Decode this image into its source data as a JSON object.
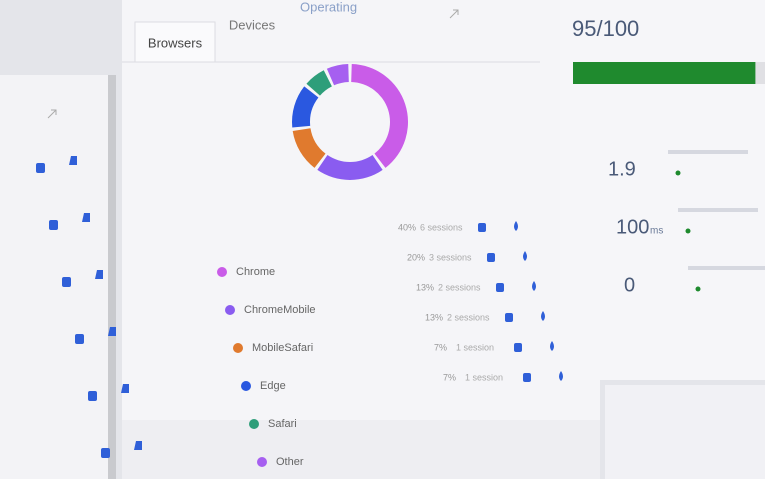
{
  "tabs": [
    "Browsers",
    "Devices",
    "Operating"
  ],
  "browsers": {
    "items": [
      {
        "name": "Chrome",
        "color": "#c95ce8",
        "value": 40,
        "value_label": "40%",
        "sessions": "6 sessions"
      },
      {
        "name": "ChromeMobile",
        "color": "#8a5cf0",
        "value": 20,
        "value_label": "20%",
        "sessions": "3 sessions"
      },
      {
        "name": "MobileSafari",
        "color": "#e07a2e",
        "value": 13,
        "value_label": "13%",
        "sessions": "2 sessions"
      },
      {
        "name": "Edge",
        "color": "#2a58e0",
        "value": 13,
        "value_label": "13%",
        "sessions": "2 sessions"
      },
      {
        "name": "Safari",
        "color": "#2e9e7a",
        "value": 7,
        "value_label": "7%",
        "sessions": "1 session"
      },
      {
        "name": "Other",
        "color": "#a65ff0",
        "value": 7,
        "value_label": "7%",
        "sessions": "1 session"
      }
    ]
  },
  "performance": {
    "score": 95,
    "score_max": 100,
    "score_label": "95/100",
    "bar_color": "#1f8a2e",
    "metrics": [
      {
        "value": "1.9"
      },
      {
        "value": "100",
        "unit": "ms"
      },
      {
        "value": "0"
      }
    ]
  }
}
